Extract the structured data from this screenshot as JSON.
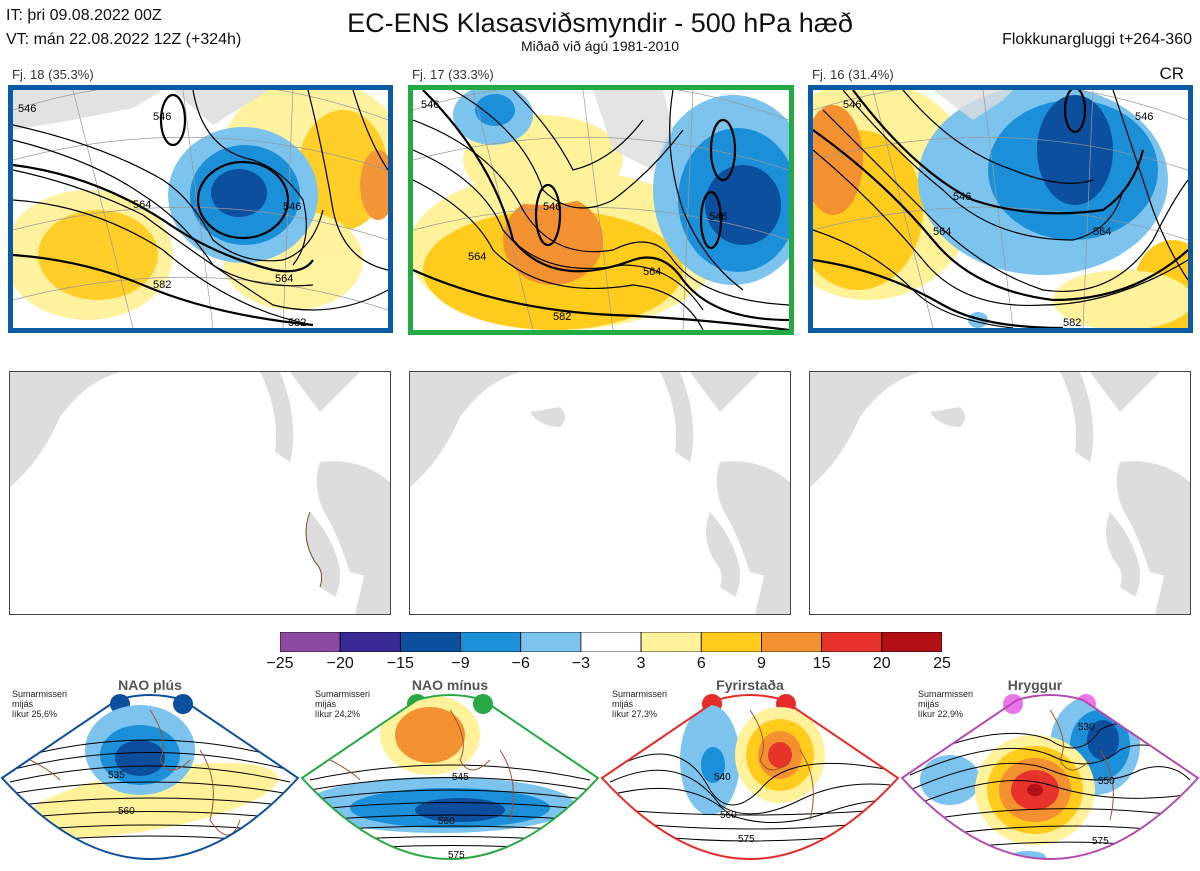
{
  "header": {
    "issue_time": "IT: þri 09.08.2022 00Z",
    "valid_time": "VT: mán 22.08.2022 12Z  (+324h)",
    "title": "EC-ENS Klasasviðsmyndir - 500 hPa hæð",
    "subtitle": "Miðað við ágú 1981-2010",
    "window": "Flokkunargluggi t+264-360",
    "regime_tag": "CR"
  },
  "clusters": [
    {
      "label": "Fj. 18 (35.3%)",
      "frame_color": "#0b5aa6",
      "contours": [
        "546",
        "546",
        "564",
        "564",
        "582",
        "582",
        "546"
      ]
    },
    {
      "label": "Fj. 17 (33.3%)",
      "frame_color": "#22aa44",
      "contours": [
        "546",
        "546",
        "546",
        "564",
        "564",
        "582"
      ]
    },
    {
      "label": "Fj. 16 (31.4%)",
      "frame_color": "#0b5aa6",
      "contours": [
        "546",
        "546",
        "546",
        "564",
        "564",
        "582"
      ]
    }
  ],
  "colorbar": {
    "ticks": [
      "−25",
      "−20",
      "−15",
      "−9",
      "−6",
      "−3",
      "3",
      "6",
      "9",
      "15",
      "20",
      "25"
    ],
    "colors": [
      "#8a4aa0",
      "#3a2a96",
      "#0b4f9e",
      "#1b8fd8",
      "#7cc3ee",
      "#ffffff",
      "#fff29a",
      "#ffcc1e",
      "#f39130",
      "#e8332a",
      "#b01016"
    ]
  },
  "regimes": [
    {
      "name": "NAO plús",
      "season": "Sumarmisseri",
      "mean": "mijás",
      "likelihood": "líkur 25,6%",
      "color": "#0b4f9e",
      "contours": [
        "535",
        "560"
      ]
    },
    {
      "name": "NAO mínus",
      "season": "Sumarmisseri",
      "mean": "mijás",
      "likelihood": "líkur 24,2%",
      "color": "#27a844",
      "contours": [
        "545",
        "560",
        "575"
      ]
    },
    {
      "name": "Fyrirstaða",
      "season": "Sumarmisseri",
      "mean": "mijás",
      "likelihood": "líkur 27,3%",
      "color": "#e52a2a",
      "contours": [
        "540",
        "560",
        "575"
      ]
    },
    {
      "name": "Hryggur",
      "season": "Sumarmisseri",
      "mean": "mijás",
      "likelihood": "líkur 22,9%",
      "color": "#ea75e8",
      "contours": [
        "530",
        "550",
        "575"
      ]
    }
  ]
}
